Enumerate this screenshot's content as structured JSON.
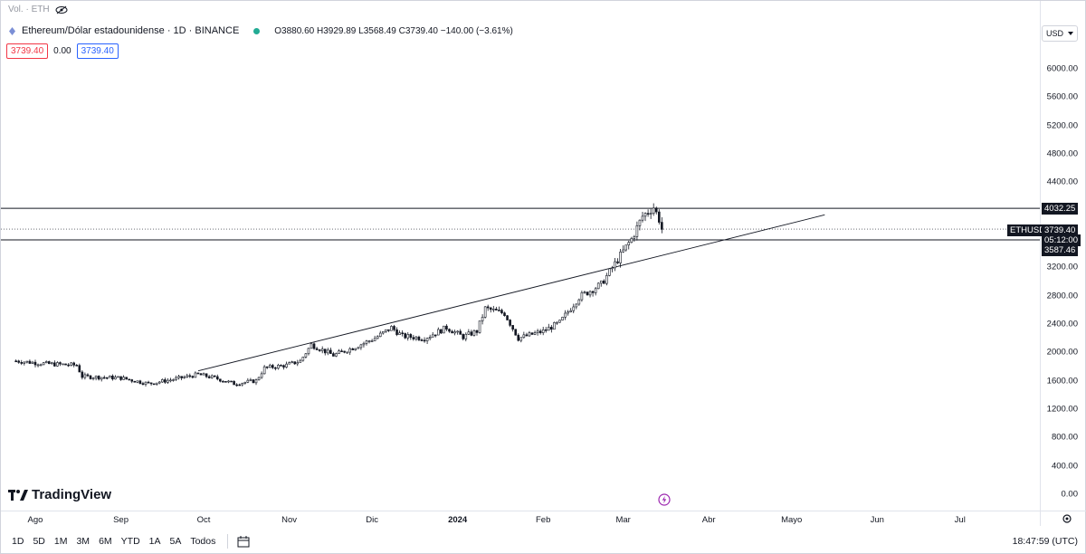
{
  "vol_label": "Vol. · ETH",
  "symbol": {
    "title": "Ethereum/Dólar estadounidense · 1D · BINANCE",
    "ohlc": "O3880.60 H3929.89 L3568.49 C3739.40 −140.00 (−3.61%)"
  },
  "price_boxes": {
    "left": "3739.40",
    "middle": "0.00",
    "right": "3739.40"
  },
  "currency": "USD",
  "y_axis": [
    "6000.00",
    "5600.00",
    "5200.00",
    "4800.00",
    "4400.00",
    "3200.00",
    "2800.00",
    "2400.00",
    "2000.00",
    "1600.00",
    "1200.00",
    "800.00",
    "400.00",
    "0.00"
  ],
  "price_tags": {
    "upper": "4032.25",
    "symbol": "ETHUSD",
    "last": "3739.40",
    "countdown": "05:12:00",
    "lower": "3587.46"
  },
  "x_axis": [
    "Ago",
    "Sep",
    "Oct",
    "Nov",
    "Dic",
    "2024",
    "Feb",
    "Mar",
    "Abr",
    "Mayo",
    "Jun",
    "Jul"
  ],
  "ranges": [
    "1D",
    "5D",
    "1M",
    "3M",
    "6M",
    "YTD",
    "1A",
    "5A",
    "Todos"
  ],
  "clock": "18:47:59 (UTC)",
  "logo": "TradingView",
  "colors": {
    "up": "#131722",
    "down": "#131722",
    "accent": "#2962ff",
    "down_text": "#f23645",
    "live": "#22ab94",
    "event": "#9c27b0"
  },
  "chart_data": {
    "type": "candlestick",
    "symbol": "ETHUSD",
    "timeframe": "1D",
    "ylim": [
      0,
      6000
    ],
    "horizontal_lines": [
      4032.25,
      3587.46
    ],
    "last_price": 3739.4,
    "trendline": {
      "from": {
        "date": "2023-09-29",
        "price": 1740
      },
      "to": {
        "date": "2024-05-13",
        "price": 3940
      }
    },
    "close_path": [
      [
        "2023-07-25",
        1880
      ],
      [
        "2023-08-05",
        1840
      ],
      [
        "2023-08-16",
        1820
      ],
      [
        "2023-08-18",
        1660
      ],
      [
        "2023-09-01",
        1640
      ],
      [
        "2023-09-11",
        1560
      ],
      [
        "2023-09-20",
        1620
      ],
      [
        "2023-09-29",
        1690
      ],
      [
        "2023-10-05",
        1640
      ],
      [
        "2023-10-12",
        1560
      ],
      [
        "2023-10-20",
        1600
      ],
      [
        "2023-10-23",
        1780
      ],
      [
        "2023-10-31",
        1820
      ],
      [
        "2023-11-05",
        1880
      ],
      [
        "2023-11-09",
        2110
      ],
      [
        "2023-11-17",
        1960
      ],
      [
        "2023-11-25",
        2080
      ],
      [
        "2023-12-02",
        2200
      ],
      [
        "2023-12-08",
        2350
      ],
      [
        "2023-12-12",
        2230
      ],
      [
        "2023-12-20",
        2200
      ],
      [
        "2023-12-28",
        2350
      ],
      [
        "2024-01-03",
        2220
      ],
      [
        "2024-01-08",
        2300
      ],
      [
        "2024-01-11",
        2620
      ],
      [
        "2024-01-18",
        2550
      ],
      [
        "2024-01-23",
        2200
      ],
      [
        "2024-02-01",
        2300
      ],
      [
        "2024-02-07",
        2420
      ],
      [
        "2024-02-14",
        2780
      ],
      [
        "2024-02-22",
        2960
      ],
      [
        "2024-02-27",
        3250
      ],
      [
        "2024-03-04",
        3600
      ],
      [
        "2024-03-08",
        3920
      ],
      [
        "2024-03-12",
        4050
      ],
      [
        "2024-03-14",
        3880
      ],
      [
        "2024-03-15",
        3739.4
      ]
    ]
  }
}
